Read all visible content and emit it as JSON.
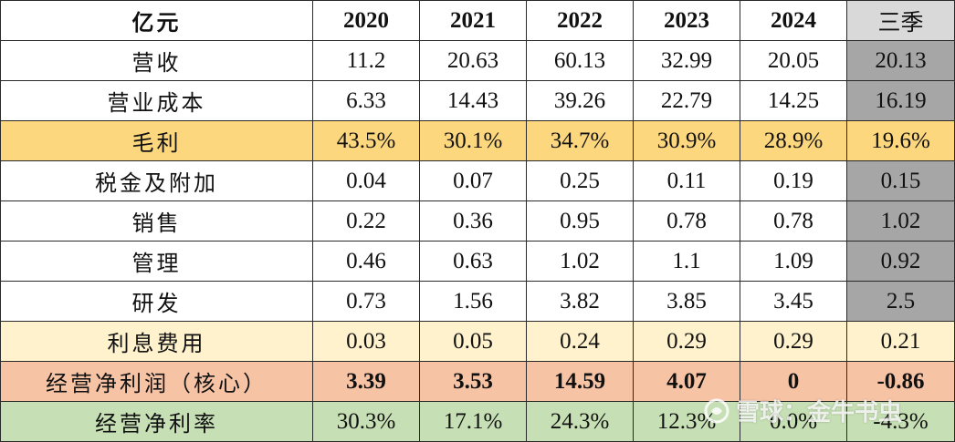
{
  "columns": [
    "亿元",
    "2020",
    "2021",
    "2022",
    "2023",
    "2024",
    "三季"
  ],
  "rows": [
    {
      "label": "营收",
      "values": [
        "11.2",
        "20.63",
        "60.13",
        "32.99",
        "20.05",
        "20.13"
      ]
    },
    {
      "label": "营业成本",
      "values": [
        "6.33",
        "14.43",
        "39.26",
        "22.79",
        "14.25",
        "16.19"
      ]
    },
    {
      "label": "毛利",
      "values": [
        "43.5%",
        "30.1%",
        "34.7%",
        "30.9%",
        "28.9%",
        "19.6%"
      ]
    },
    {
      "label": "税金及附加",
      "values": [
        "0.04",
        "0.07",
        "0.25",
        "0.11",
        "0.19",
        "0.15"
      ]
    },
    {
      "label": "销售",
      "values": [
        "0.22",
        "0.36",
        "0.95",
        "0.78",
        "0.78",
        "1.02"
      ]
    },
    {
      "label": "管理",
      "values": [
        "0.46",
        "0.63",
        "1.02",
        "1.1",
        "1.09",
        "0.92"
      ]
    },
    {
      "label": "研发",
      "values": [
        "0.73",
        "1.56",
        "3.82",
        "3.85",
        "3.45",
        "2.5"
      ]
    },
    {
      "label": "利息费用",
      "values": [
        "0.03",
        "0.05",
        "0.24",
        "0.29",
        "0.29",
        "0.21"
      ]
    },
    {
      "label": "经营净利润（核心）",
      "values": [
        "3.39",
        "3.53",
        "14.59",
        "4.07",
        "0",
        "-0.86"
      ]
    },
    {
      "label": "经营净利率",
      "values": [
        "30.3%",
        "17.1%",
        "24.3%",
        "12.3%",
        "0.0%",
        "-4.3%"
      ]
    }
  ],
  "watermark": "雪球：金牛书虫",
  "colors": {
    "gross_row": "#fcd77d",
    "interest_row": "#fff2cc",
    "core_profit_row": "#f7c3a5",
    "margin_row": "#c6dfb4",
    "q3_column": "#a6a6a6"
  }
}
